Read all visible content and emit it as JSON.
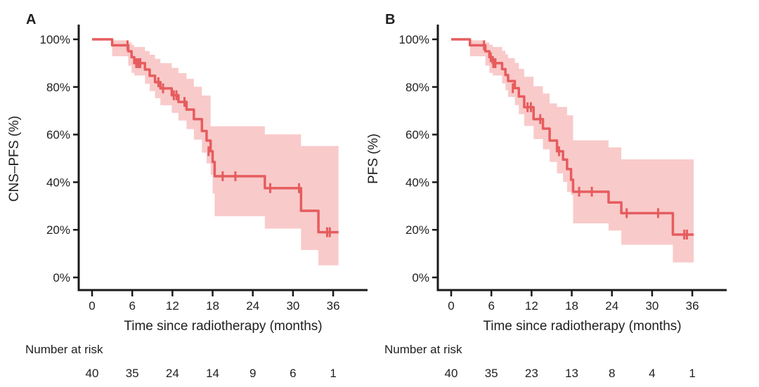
{
  "figure": {
    "background": "#ffffff",
    "curve_color": "#e65c5e",
    "band_color": "#f9caca",
    "axis_color": "#1a1a1a",
    "text_color": "#1f1f1f"
  },
  "chart_data": [
    {
      "type": "line",
      "subtype": "kaplan-meier-step",
      "panel_label": "A",
      "ylabel": "CNS–PFS (%)",
      "xlabel": "Time since radiotherapy (months)",
      "xlim": [
        0,
        41
      ],
      "ylim": [
        0,
        100
      ],
      "grid": false,
      "legend": "none",
      "x_tick_values": [
        0,
        6,
        12,
        18,
        24,
        30,
        36
      ],
      "x_tick_labels": [
        "0",
        "6",
        "12",
        "18",
        "24",
        "30",
        "36"
      ],
      "y_tick_values": [
        100,
        80,
        60,
        40,
        20,
        0
      ],
      "y_tick_labels": [
        "100%",
        "80%",
        "60%",
        "40%",
        "20%",
        "0%"
      ],
      "t_end": 36.8,
      "steps_t_pct_lo_hi": [
        [
          0,
          100,
          100,
          100
        ],
        [
          3,
          97.5,
          92.9,
          99.6
        ],
        [
          5.4,
          95,
          88.9,
          98.7
        ],
        [
          5.9,
          92.5,
          85.9,
          97.7
        ],
        [
          6.3,
          90,
          84.8,
          96.8
        ],
        [
          7.9,
          87.3,
          81.3,
          95.1
        ],
        [
          8.6,
          84.7,
          78.3,
          93.5
        ],
        [
          9.4,
          82,
          75.3,
          91.8
        ],
        [
          10.2,
          79.4,
          72.3,
          90.0
        ],
        [
          11.9,
          76.5,
          69.1,
          88.0
        ],
        [
          12.9,
          73.7,
          65.9,
          85.8
        ],
        [
          14.1,
          70.5,
          62.3,
          83.4
        ],
        [
          15.2,
          66.5,
          57.9,
          80.1
        ],
        [
          16.4,
          61.5,
          52.4,
          76.4
        ],
        [
          17.1,
          57.5,
          47.9,
          76.4
        ],
        [
          17.7,
          53,
          43.1,
          63.5
        ],
        [
          18.0,
          48.5,
          35.2,
          63.5
        ],
        [
          18.3,
          42.5,
          25.7,
          63.5
        ],
        [
          25.8,
          37.5,
          20.5,
          60.1
        ],
        [
          31.2,
          28,
          11.5,
          55.2
        ],
        [
          33.8,
          19,
          5.1,
          55.2
        ]
      ],
      "censor_marks_t_pct": [
        [
          5.3,
          97.5
        ],
        [
          6.6,
          90
        ],
        [
          6.9,
          90
        ],
        [
          7.2,
          90
        ],
        [
          9.9,
          82
        ],
        [
          10.6,
          79.4
        ],
        [
          12.2,
          76.5
        ],
        [
          12.6,
          76.5
        ],
        [
          13.8,
          73.7
        ],
        [
          17.4,
          53
        ],
        [
          19.5,
          42.5
        ],
        [
          21.4,
          42.5
        ],
        [
          26.6,
          37.5
        ],
        [
          30.9,
          37.5
        ],
        [
          35.1,
          19
        ],
        [
          35.5,
          19
        ]
      ],
      "risk_label": "Number at risk",
      "risk_times": [
        0,
        6,
        12,
        18,
        24,
        30,
        36
      ],
      "risk_counts": [
        "40",
        "35",
        "24",
        "14",
        "9",
        "6",
        "1"
      ]
    },
    {
      "type": "line",
      "subtype": "kaplan-meier-step",
      "panel_label": "B",
      "ylabel": "PFS (%)",
      "xlabel": "Time since radiotherapy (months)",
      "xlim": [
        0,
        41
      ],
      "ylim": [
        0,
        100
      ],
      "grid": false,
      "legend": "none",
      "x_tick_values": [
        0,
        6,
        12,
        18,
        24,
        30,
        36
      ],
      "x_tick_labels": [
        "0",
        "6",
        "12",
        "18",
        "24",
        "30",
        "36"
      ],
      "y_tick_values": [
        100,
        80,
        60,
        40,
        20,
        0
      ],
      "y_tick_labels": [
        "100%",
        "80%",
        "60%",
        "40%",
        "20%",
        "0%"
      ],
      "t_end": 36.2,
      "steps_t_pct_lo_hi": [
        [
          0,
          100,
          100,
          100
        ],
        [
          2.8,
          97.5,
          92.9,
          99.6
        ],
        [
          5.1,
          95,
          88.9,
          98.7
        ],
        [
          5.7,
          92.5,
          85.9,
          97.7
        ],
        [
          6.2,
          90,
          84.8,
          96.8
        ],
        [
          7.6,
          87.5,
          81.5,
          95.2
        ],
        [
          8.1,
          85,
          78.6,
          93.7
        ],
        [
          8.5,
          82.5,
          75.8,
          92.1
        ],
        [
          9.5,
          79.5,
          72.4,
          90.1
        ],
        [
          10.1,
          76,
          68.6,
          87.6
        ],
        [
          10.9,
          71.5,
          63.6,
          84.3
        ],
        [
          12.3,
          66.5,
          58.1,
          80.3
        ],
        [
          13.7,
          62.5,
          53.8,
          77.2
        ],
        [
          14.7,
          57.5,
          48.5,
          73.1
        ],
        [
          15.8,
          53,
          43.7,
          71.6
        ],
        [
          16.7,
          49.5,
          40.1,
          71.6
        ],
        [
          17.3,
          45.5,
          35.9,
          68.1
        ],
        [
          17.9,
          41,
          34.6,
          68.1
        ],
        [
          18.2,
          36,
          22.7,
          57.6
        ],
        [
          23.5,
          31.5,
          19.7,
          54.6
        ],
        [
          25.4,
          27,
          13.7,
          49.6
        ],
        [
          33.1,
          18,
          6.3,
          49.6
        ]
      ],
      "censor_marks_t_pct": [
        [
          4.9,
          97.5
        ],
        [
          5.9,
          92.5
        ],
        [
          6.3,
          90
        ],
        [
          6.6,
          90
        ],
        [
          9.2,
          79.5
        ],
        [
          11.4,
          71.5
        ],
        [
          11.9,
          71.5
        ],
        [
          13.3,
          66.5
        ],
        [
          16.1,
          53
        ],
        [
          19.1,
          36
        ],
        [
          21.0,
          36
        ],
        [
          26.2,
          27
        ],
        [
          30.9,
          27
        ],
        [
          34.8,
          18
        ],
        [
          35.2,
          18
        ]
      ],
      "risk_label": "Number at risk",
      "risk_times": [
        0,
        6,
        12,
        18,
        24,
        30,
        36
      ],
      "risk_counts": [
        "40",
        "35",
        "23",
        "13",
        "8",
        "4",
        "1"
      ]
    }
  ]
}
